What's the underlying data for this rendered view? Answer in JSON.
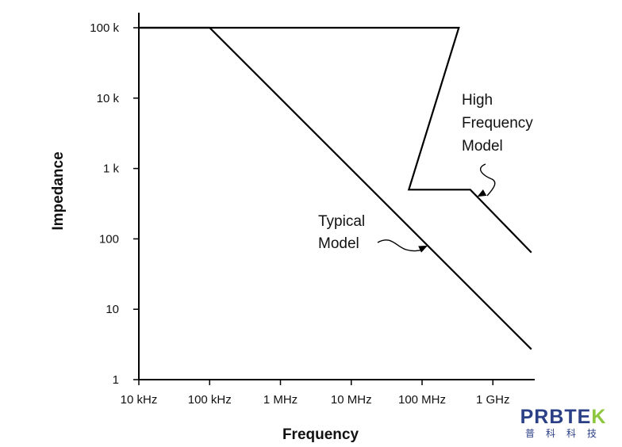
{
  "chart_data": {
    "type": "line",
    "title": "",
    "xlabel": "Frequency",
    "ylabel": "Impedance",
    "xscale": "log",
    "yscale": "log",
    "xlim": [
      10000,
      3500000000
    ],
    "ylim": [
      1,
      100000
    ],
    "x_ticks": [
      {
        "value": 10000,
        "label": "10 kHz"
      },
      {
        "value": 100000,
        "label": "100 kHz"
      },
      {
        "value": 1000000,
        "label": "1 MHz"
      },
      {
        "value": 10000000,
        "label": "10 MHz"
      },
      {
        "value": 100000000,
        "label": "100 MHz"
      },
      {
        "value": 1000000000,
        "label": "1 GHz"
      }
    ],
    "y_ticks": [
      {
        "value": 1,
        "label": "1"
      },
      {
        "value": 10,
        "label": "10"
      },
      {
        "value": 100,
        "label": "100"
      },
      {
        "value": 1000,
        "label": "1 k"
      },
      {
        "value": 10000,
        "label": "10 k"
      },
      {
        "value": 100000,
        "label": "100 k"
      }
    ],
    "series": [
      {
        "name": "Typical Model",
        "annotation": [
          "Typical",
          "Model"
        ],
        "arrow_target_x": 120000000,
        "x": [
          10000,
          100000,
          3500000000
        ],
        "y": [
          100000,
          100000,
          2.7
        ]
      },
      {
        "name": "High Frequency Model",
        "annotation": [
          "High",
          "Frequency",
          "Model"
        ],
        "arrow_target_x": 600000000,
        "x": [
          10000,
          330000000,
          65000000,
          480000000,
          3500000000
        ],
        "y": [
          100000,
          100000,
          500,
          500,
          64
        ]
      }
    ],
    "grid": false
  },
  "watermark": {
    "text_main": "PRBTE",
    "text_accent": "K",
    "text_sub": "普科科技",
    "color_main": "#2a3f86",
    "color_accent": "#8dc63f"
  }
}
